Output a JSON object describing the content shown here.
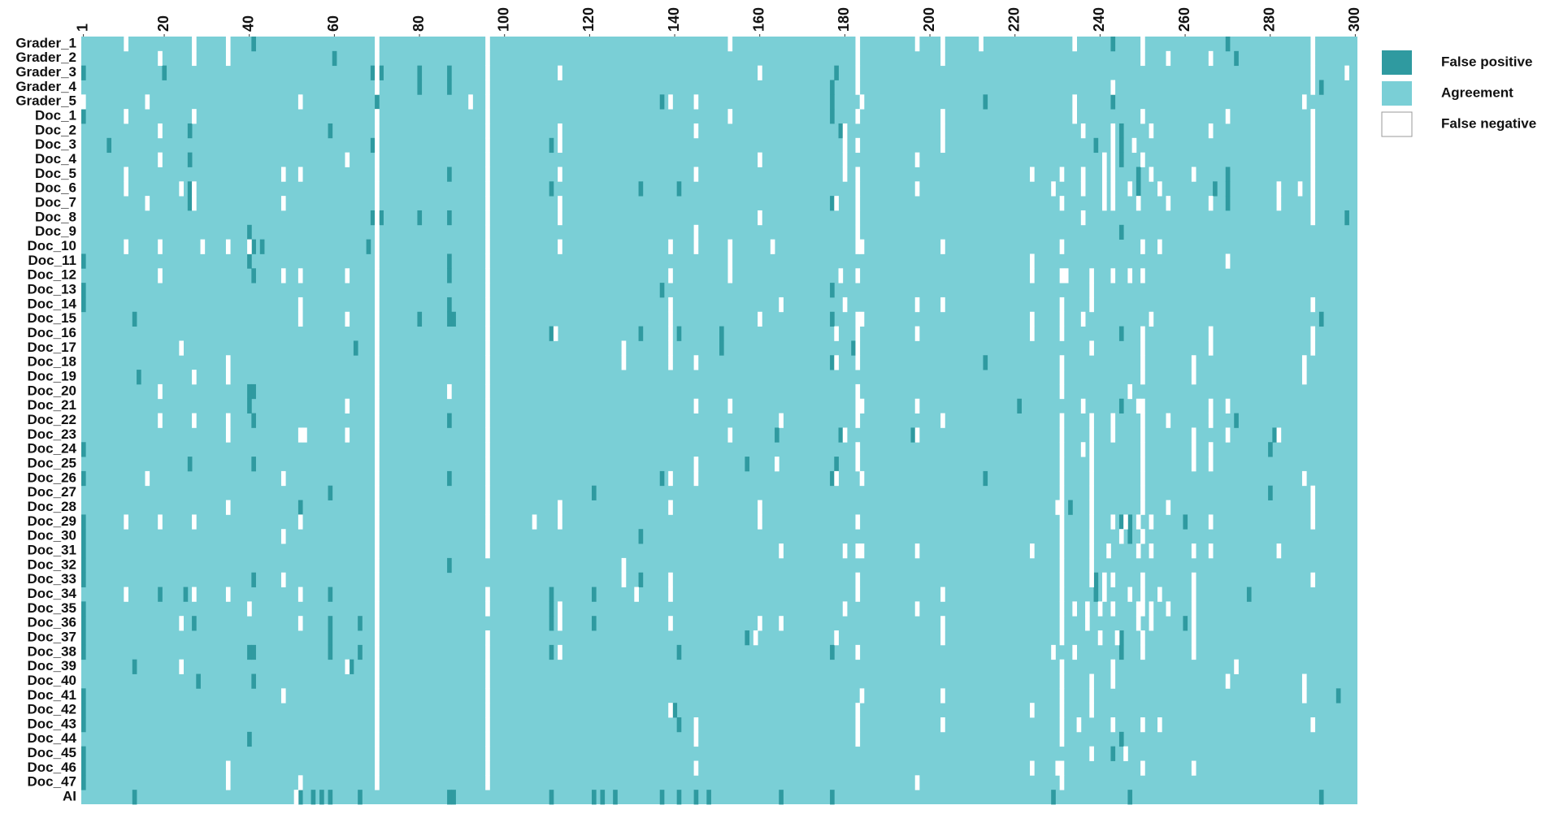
{
  "chart_data": {
    "type": "heatmap",
    "rows": [
      "Grader_1",
      "Grader_2",
      "Grader_3",
      "Grader_4",
      "Grader_5",
      "Doc_1",
      "Doc_2",
      "Doc_3",
      "Doc_4",
      "Doc_5",
      "Doc_6",
      "Doc_7",
      "Doc_8",
      "Doc_9",
      "Doc_10",
      "Doc_11",
      "Doc_12",
      "Doc_13",
      "Doc_14",
      "Doc_15",
      "Doc_16",
      "Doc_17",
      "Doc_18",
      "Doc_19",
      "Doc_20",
      "Doc_21",
      "Doc_22",
      "Doc_23",
      "Doc_24",
      "Doc_25",
      "Doc_26",
      "Doc_27",
      "Doc_28",
      "Doc_29",
      "Doc_30",
      "Doc_31",
      "Doc_32",
      "Doc_33",
      "Doc_34",
      "Doc_35",
      "Doc_36",
      "Doc_37",
      "Doc_38",
      "Doc_39",
      "Doc_40",
      "Doc_41",
      "Doc_42",
      "Doc_43",
      "Doc_44",
      "Doc_45",
      "Doc_46",
      "Doc_47",
      "AI"
    ],
    "xlim": [
      1,
      300
    ],
    "xticks": [
      1,
      20,
      40,
      60,
      80,
      100,
      120,
      140,
      160,
      180,
      200,
      220,
      240,
      260,
      280,
      300
    ],
    "background": "Agreement",
    "series": [
      {
        "name": "False positive",
        "color": "#2f9aa0",
        "values": [
          [
            41,
            243,
            270
          ],
          [
            60,
            272
          ],
          [
            1,
            20,
            69,
            71,
            80,
            87,
            178
          ],
          [
            80,
            87,
            177,
            292
          ],
          [
            70,
            137,
            177,
            213,
            243
          ],
          [
            1,
            177
          ],
          [
            26,
            59,
            179,
            245
          ],
          [
            7,
            69,
            111,
            239,
            245
          ],
          [
            26,
            245
          ],
          [
            87,
            249,
            270
          ],
          [
            26,
            111,
            132,
            141,
            249,
            267,
            270
          ],
          [
            26,
            177,
            270
          ],
          [
            69,
            71,
            80,
            87,
            298
          ],
          [
            40,
            245
          ],
          [
            41,
            43,
            68
          ],
          [
            1,
            40,
            87
          ],
          [
            41,
            87
          ],
          [
            1,
            137,
            177
          ],
          [
            1,
            87
          ],
          [
            13,
            80,
            87,
            88,
            177,
            292
          ],
          [
            111,
            132,
            141,
            151,
            245
          ],
          [
            65,
            151,
            182
          ],
          [
            177,
            213
          ],
          [
            14
          ],
          [
            40,
            41
          ],
          [
            40,
            221,
            245
          ],
          [
            41,
            87,
            272
          ],
          [
            164,
            179,
            196,
            281
          ],
          [
            1,
            280
          ],
          [
            26,
            41,
            157,
            178
          ],
          [
            1,
            87,
            137,
            177,
            213
          ],
          [
            59,
            121,
            280
          ],
          [
            52,
            233
          ],
          [
            1,
            245,
            247,
            260
          ],
          [
            1,
            132,
            247
          ],
          [
            1
          ],
          [
            1,
            87
          ],
          [
            1,
            41,
            132,
            239
          ],
          [
            19,
            25,
            59,
            111,
            121,
            239,
            275
          ],
          [
            1,
            111
          ],
          [
            1,
            27,
            59,
            66,
            111,
            121,
            260
          ],
          [
            1,
            59,
            157,
            245
          ],
          [
            1,
            40,
            41,
            59,
            66,
            111,
            141,
            177,
            245
          ],
          [
            13,
            64
          ],
          [
            28,
            41
          ],
          [
            1,
            296
          ],
          [
            1,
            140
          ],
          [
            1,
            141
          ],
          [
            40,
            245
          ],
          [
            1,
            243
          ],
          [
            1
          ],
          [
            1
          ],
          [
            13,
            52,
            55,
            57,
            59,
            66,
            87,
            88,
            111,
            121,
            123,
            126,
            137,
            141,
            145,
            148,
            165,
            177,
            229,
            247,
            292
          ]
        ]
      },
      {
        "name": "Agreement",
        "color": "#7acfd6"
      },
      {
        "name": "False negative",
        "color": "#ffffff",
        "values": [
          [
            11,
            27,
            35,
            70,
            96,
            153,
            183,
            197,
            203,
            212,
            234,
            250,
            290
          ],
          [
            19,
            27,
            35,
            70,
            96,
            183,
            203,
            250,
            256,
            266,
            290
          ],
          [
            70,
            96,
            113,
            160,
            183,
            290,
            298
          ],
          [
            70,
            96,
            183,
            243,
            290
          ],
          [
            1,
            16,
            52,
            92,
            96,
            139,
            145,
            184,
            234,
            288
          ],
          [
            11,
            27,
            70,
            96,
            153,
            183,
            203,
            234,
            250,
            270,
            290
          ],
          [
            19,
            70,
            96,
            113,
            145,
            180,
            203,
            236,
            243,
            252,
            266,
            290
          ],
          [
            70,
            96,
            113,
            180,
            183,
            203,
            243,
            248,
            290
          ],
          [
            19,
            63,
            70,
            96,
            160,
            180,
            197,
            241,
            243,
            250,
            290
          ],
          [
            11,
            48,
            52,
            70,
            96,
            113,
            145,
            180,
            183,
            224,
            231,
            236,
            241,
            243,
            252,
            262,
            290
          ],
          [
            11,
            24,
            27,
            70,
            96,
            183,
            197,
            229,
            236,
            241,
            243,
            247,
            254,
            282,
            287,
            290
          ],
          [
            16,
            27,
            48,
            70,
            96,
            113,
            178,
            183,
            231,
            241,
            243,
            249,
            256,
            266,
            282,
            290
          ],
          [
            70,
            96,
            113,
            160,
            183,
            236,
            290
          ],
          [
            70,
            96,
            145,
            183
          ],
          [
            11,
            19,
            29,
            35,
            40,
            70,
            96,
            113,
            139,
            145,
            153,
            163,
            183,
            184,
            203,
            231,
            250,
            254
          ],
          [
            70,
            96,
            153,
            224,
            270
          ],
          [
            19,
            48,
            52,
            63,
            70,
            96,
            139,
            153,
            179,
            183,
            224,
            231,
            232,
            238,
            243,
            247,
            250
          ],
          [
            70,
            96,
            238
          ],
          [
            52,
            70,
            96,
            139,
            165,
            180,
            197,
            203,
            231,
            238,
            290
          ],
          [
            52,
            63,
            70,
            96,
            139,
            160,
            183,
            184,
            224,
            231,
            236,
            252
          ],
          [
            70,
            96,
            112,
            139,
            178,
            183,
            197,
            224,
            231,
            250,
            266,
            290
          ],
          [
            24,
            70,
            96,
            128,
            139,
            183,
            238,
            250,
            266,
            290
          ],
          [
            35,
            70,
            96,
            128,
            139,
            145,
            178,
            183,
            231,
            250,
            262,
            288
          ],
          [
            27,
            35,
            70,
            96,
            231,
            250,
            262,
            288
          ],
          [
            19,
            70,
            87,
            96,
            183,
            231,
            247
          ],
          [
            63,
            70,
            96,
            145,
            153,
            183,
            184,
            197,
            236,
            249,
            250,
            266,
            270
          ],
          [
            19,
            27,
            35,
            70,
            96,
            165,
            183,
            203,
            231,
            238,
            243,
            250,
            256,
            266
          ],
          [
            35,
            52,
            53,
            63,
            70,
            96,
            153,
            180,
            197,
            231,
            238,
            243,
            250,
            262,
            270,
            282
          ],
          [
            70,
            96,
            183,
            231,
            236,
            238,
            250,
            262,
            266
          ],
          [
            70,
            96,
            145,
            164,
            183,
            231,
            238,
            250,
            262,
            266
          ],
          [
            16,
            48,
            70,
            96,
            139,
            145,
            178,
            184,
            231,
            238,
            250,
            288
          ],
          [
            70,
            96,
            231,
            238,
            250,
            290
          ],
          [
            35,
            70,
            96,
            113,
            139,
            160,
            230,
            231,
            238,
            250,
            256,
            290
          ],
          [
            11,
            19,
            27,
            52,
            70,
            96,
            107,
            113,
            160,
            183,
            231,
            238,
            243,
            246,
            249,
            252,
            266,
            290
          ],
          [
            48,
            70,
            96,
            231,
            238,
            245,
            250
          ],
          [
            70,
            96,
            165,
            180,
            183,
            184,
            197,
            224,
            231,
            238,
            242,
            249,
            252,
            262,
            266,
            282
          ],
          [
            70,
            128,
            231,
            238
          ],
          [
            48,
            70,
            128,
            139,
            183,
            231,
            238,
            241,
            243,
            250,
            262,
            290
          ],
          [
            11,
            27,
            35,
            52,
            70,
            96,
            131,
            139,
            183,
            203,
            231,
            241,
            247,
            250,
            254,
            262
          ],
          [
            40,
            70,
            96,
            113,
            180,
            197,
            231,
            234,
            237,
            240,
            243,
            249,
            250,
            252,
            256,
            262
          ],
          [
            24,
            52,
            70,
            113,
            139,
            160,
            165,
            203,
            231,
            237,
            249,
            252,
            262
          ],
          [
            70,
            96,
            159,
            178,
            203,
            231,
            240,
            244,
            250,
            262
          ],
          [
            70,
            96,
            113,
            183,
            229,
            234,
            250,
            262
          ],
          [
            24,
            63,
            70,
            96,
            231,
            243,
            272
          ],
          [
            70,
            96,
            231,
            238,
            243,
            270,
            288
          ],
          [
            48,
            70,
            96,
            184,
            203,
            231,
            238,
            288
          ],
          [
            70,
            96,
            139,
            183,
            224,
            231,
            238
          ],
          [
            70,
            96,
            145,
            183,
            203,
            231,
            235,
            243,
            250,
            254,
            290
          ],
          [
            70,
            96,
            145,
            183,
            231
          ],
          [
            70,
            96,
            238,
            246
          ],
          [
            35,
            70,
            96,
            145,
            224,
            230,
            231,
            250,
            262
          ],
          [
            35,
            52,
            70,
            96,
            197,
            231
          ],
          [
            51
          ]
        ]
      }
    ]
  }
}
